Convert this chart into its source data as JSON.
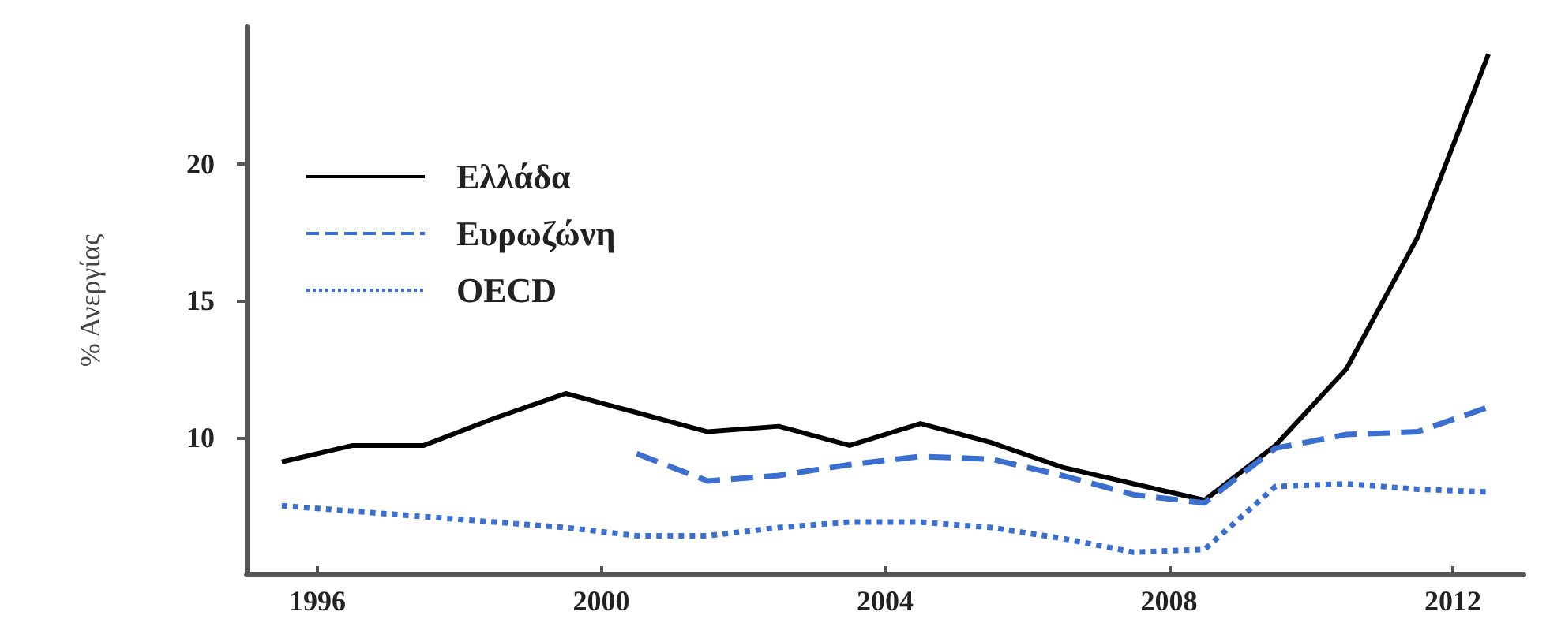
{
  "chart_data": {
    "type": "line",
    "ylabel": "% Ανεργίας",
    "xlim": [
      1995,
      2013
    ],
    "xticks": [
      1996,
      2000,
      2004,
      2008,
      2012
    ],
    "ylim": [
      5,
      25
    ],
    "yticks": [
      10,
      15,
      20
    ],
    "grid": false,
    "legend": "top left",
    "marker": "none",
    "series": [
      {
        "name": "Ελλάδα",
        "color": "#000000",
        "line_style": "solid",
        "x": [
          1995.5,
          1996.5,
          1997.5,
          1998.5,
          1999.5,
          2000.5,
          2001.5,
          2002.5,
          2003.5,
          2004.5,
          2005.5,
          2006.5,
          2007.5,
          2008.5,
          2009.5,
          2010.5,
          2011.5,
          2012.5
        ],
        "values": [
          9.1,
          9.7,
          9.7,
          10.7,
          11.6,
          10.9,
          10.2,
          10.4,
          9.7,
          10.5,
          9.8,
          8.9,
          8.3,
          7.7,
          9.7,
          12.5,
          17.3,
          24.0
        ]
      },
      {
        "name": "Ευρωζώνη",
        "color": "#3a6fd0",
        "line_style": "dashed",
        "x": [
          2000.5,
          2001.5,
          2002.5,
          2003.5,
          2004.5,
          2005.5,
          2006.5,
          2007.5,
          2008.5,
          2009.5,
          2010.5,
          2011.5,
          2012.5
        ],
        "values": [
          9.4,
          8.4,
          8.6,
          9.0,
          9.3,
          9.2,
          8.6,
          7.9,
          7.6,
          9.6,
          10.1,
          10.2,
          11.1
        ]
      },
      {
        "name": "OECD",
        "color": "#3a6fd0",
        "line_style": "dotted",
        "x": [
          1995.5,
          1996.5,
          1997.5,
          1998.5,
          1999.5,
          2000.5,
          2001.5,
          2002.5,
          2003.5,
          2004.5,
          2005.5,
          2006.5,
          2007.5,
          2008.5,
          2009.5,
          2010.5,
          2011.5,
          2012.5
        ],
        "values": [
          7.5,
          7.3,
          7.1,
          6.9,
          6.7,
          6.4,
          6.4,
          6.7,
          6.9,
          6.9,
          6.7,
          6.3,
          5.8,
          5.9,
          8.2,
          8.3,
          8.1,
          8.0
        ]
      }
    ]
  }
}
